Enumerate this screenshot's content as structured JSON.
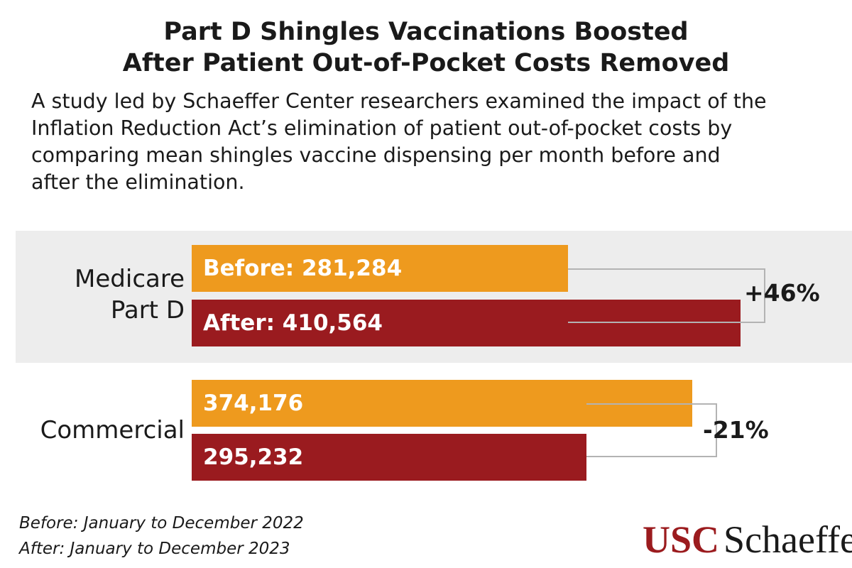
{
  "title": {
    "line1": "Part D Shingles Vaccinations Boosted",
    "line2": "After Patient Out-of-Pocket Costs Removed"
  },
  "subtitle": {
    "line1": "A study led by Schaeffer Center researchers examined the impact of the",
    "line2": "Inflation Reduction Act’s elimination of patient out-of-pocket costs by",
    "line3": "comparing mean shingles vaccine dispensing per month before and",
    "line4": "after the elimination."
  },
  "colors": {
    "before": "#ee9a1e",
    "after": "#9a1b1f",
    "group_background": "#ededed",
    "bracket": "#b3b3b3"
  },
  "chart_data": {
    "type": "bar",
    "orientation": "horizontal",
    "xlim": [
      0,
      500000
    ],
    "groups": [
      {
        "name_line1": "Medicare",
        "name_line2": "Part D",
        "highlighted": true,
        "bars": [
          {
            "series": "Before",
            "value": 281284,
            "label": "Before: 281,284"
          },
          {
            "series": "After",
            "value": 410564,
            "label": "After: 410,564"
          }
        ],
        "change": "+46%"
      },
      {
        "name_line1": "Commercial",
        "name_line2": "",
        "highlighted": false,
        "bars": [
          {
            "series": "Before",
            "value": 374176,
            "label": "374,176"
          },
          {
            "series": "After",
            "value": 295232,
            "label": "295,232"
          }
        ],
        "change": "-21%"
      }
    ]
  },
  "footnotes": {
    "before": "Before: January to December 2022",
    "after": "After: January to December 2023"
  },
  "logo": {
    "usc": "USC",
    "schaeffer": "Schaeffer"
  }
}
